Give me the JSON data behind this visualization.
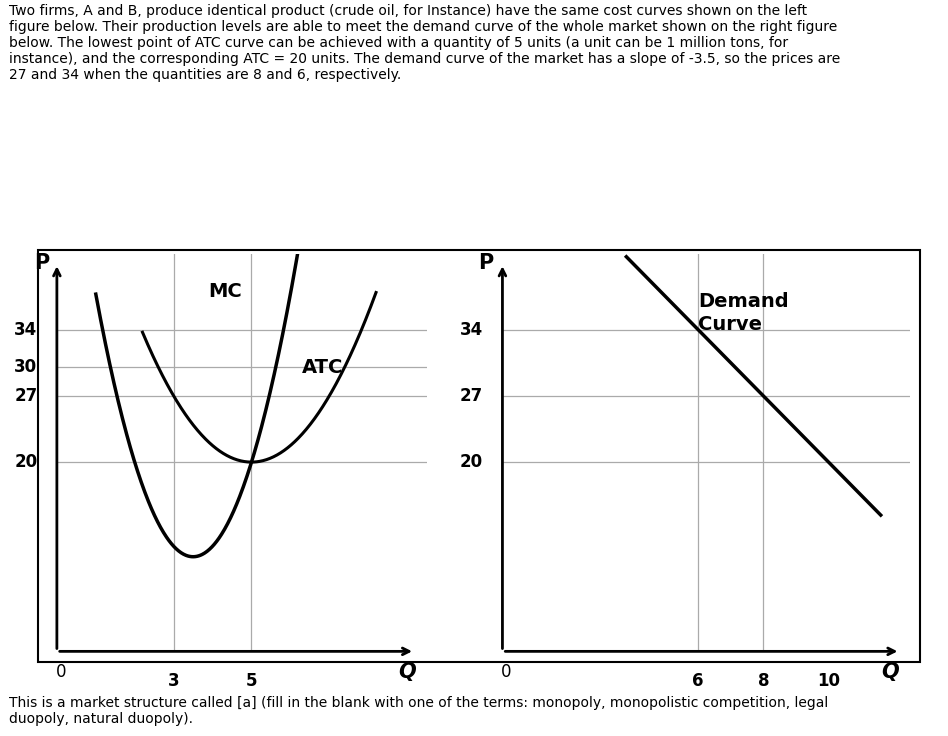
{
  "title_text": "Two firms, A and B, produce identical product (crude oil, for Instance) have the same cost curves shown on the left\nfigure below. Their production levels are able to meet the demand curve of the whole market shown on the right figure\nbelow. The lowest point of ATC curve can be achieved with a quantity of 5 units (a unit can be 1 million tons, for\ninstance), and the corresponding ATC = 20 units. The demand curve of the market has a slope of -3.5, so the prices are\n27 and 34 when the quantities are 8 and 6, respectively.",
  "footer_text": "This is a market structure called [a] (fill in the blank with one of the terms: monopoly, monopolistic competition, legal\nduopoly, natural duopoly).",
  "left_yticks": [
    20,
    27,
    30,
    34
  ],
  "left_xticks": [
    3,
    5
  ],
  "right_yticks": [
    20,
    27,
    34
  ],
  "right_xticks": [
    6,
    8,
    10
  ],
  "left_hlines": [
    20,
    27,
    30,
    34
  ],
  "right_hlines": [
    20,
    27,
    34
  ],
  "left_vlines": [
    3,
    5
  ],
  "right_vlines": [
    6,
    8
  ],
  "atc_min_q": 5,
  "atc_min_p": 20,
  "mc_label": "MC",
  "atc_label": "ATC",
  "demand_label": "Demand\nCurve",
  "background_color": "#ffffff",
  "curve_color": "#000000",
  "grid_color": "#aaaaaa",
  "fontsize_labels": 13,
  "fontsize_ticks": 13,
  "demand_slope": -3.5,
  "demand_intercept": 55.0,
  "atc_a": 1.75,
  "mc_a": 4.44,
  "mc_q0": 3.5,
  "mc_p0": 10.0
}
